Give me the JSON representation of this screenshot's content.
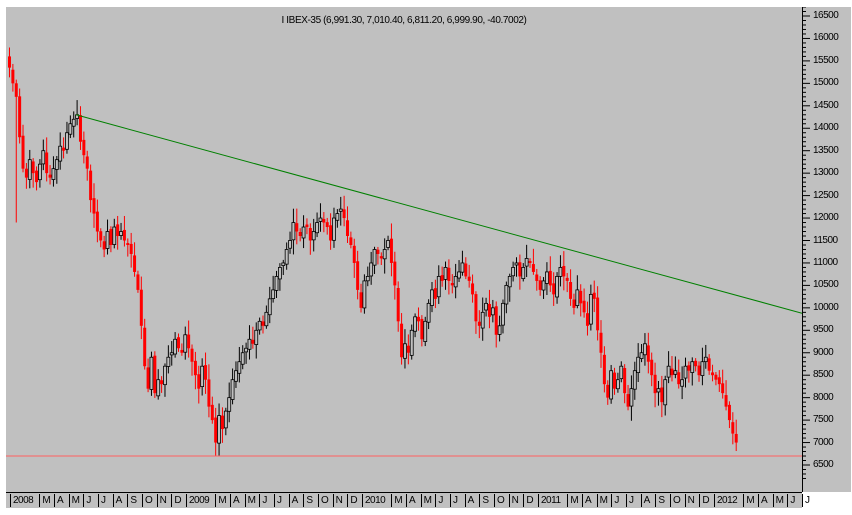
{
  "title": "I IBEX-35 (6,991.30, 7,010.40, 6,811.20, 6,999.90, -40.7002)",
  "colors": {
    "background": "#c0c0c0",
    "up_candle": "#000000",
    "down_candle": "#ff0000",
    "trendline": "#008000",
    "support_line": "#ff6060"
  },
  "y_axis": {
    "labels": [
      "16500",
      "16000",
      "15500",
      "15000",
      "14500",
      "14000",
      "13500",
      "13000",
      "12500",
      "12000",
      "11500",
      "11000",
      "10500",
      "10000",
      "9500",
      "9000",
      "8500",
      "8000",
      "7500",
      "7000",
      "6500"
    ]
  },
  "x_axis": {
    "labels": [
      "2008",
      "M",
      "A",
      "M",
      "J",
      "J",
      "A",
      "S",
      "O",
      "N",
      "D",
      "2009",
      "M",
      "A",
      "M",
      "J",
      "J",
      "A",
      "S",
      "O",
      "N",
      "D",
      "2010",
      "M",
      "A",
      "M",
      "J",
      "J",
      "A",
      "S",
      "O",
      "N",
      "D",
      "2011",
      "M",
      "A",
      "M",
      "J",
      "J",
      "A",
      "S",
      "O",
      "N",
      "D",
      "2012",
      "M",
      "A",
      "M",
      "J",
      "J"
    ]
  },
  "chart_data": {
    "type": "candlestick",
    "title": "IBEX-35 (6,991.30, 7,010.40, 6,811.20, 6,999.90, -40.7002)",
    "last_bar": {
      "open": 6991.3,
      "high": 7010.4,
      "low": 6811.2,
      "close": 6999.9,
      "change": -40.7002
    },
    "xlabel": "",
    "ylabel": "",
    "ylim": [
      6200,
      16700
    ],
    "y_ticks": [
      6500,
      7000,
      7500,
      8000,
      8500,
      9000,
      9500,
      10000,
      10500,
      11000,
      11500,
      12000,
      12500,
      13000,
      13500,
      14000,
      14500,
      15000,
      15500,
      16000,
      16500
    ],
    "x_ticks": [
      "2008",
      "M",
      "A",
      "M",
      "J",
      "J",
      "A",
      "S",
      "O",
      "N",
      "D",
      "2009",
      "M",
      "A",
      "M",
      "J",
      "J",
      "A",
      "S",
      "O",
      "N",
      "D",
      "2010",
      "M",
      "A",
      "M",
      "J",
      "J",
      "A",
      "S",
      "O",
      "N",
      "D",
      "2011",
      "M",
      "A",
      "M",
      "J",
      "J",
      "A",
      "S",
      "O",
      "N",
      "D",
      "2012",
      "M",
      "A",
      "M",
      "J",
      "J"
    ],
    "period": "weekly",
    "x_range": [
      "2008-01",
      "2012-04"
    ],
    "annotations": [
      {
        "type": "trendline",
        "color": "green",
        "from": {
          "date": "2008-05",
          "price": 14300
        },
        "to": {
          "date": "2012-06",
          "price": 9900
        },
        "touches": [
          "2009-12 ~12250",
          "2011-02 ~11200",
          "2011-04 ~11000"
        ]
      },
      {
        "type": "horizontal_line",
        "color": "red",
        "price": 6700,
        "note": "support at Mar 2009 low"
      }
    ],
    "key_points": [
      {
        "date": "2008-01",
        "price": 15400,
        "label": "start"
      },
      {
        "date": "2008-01",
        "price": 11900,
        "label": "Jan 2008 spike low"
      },
      {
        "date": "2008-05",
        "price": 14300,
        "label": "May 2008 high"
      },
      {
        "date": "2008-10",
        "price": 7800,
        "label": "Oct 2008 low"
      },
      {
        "date": "2009-03",
        "price": 6700,
        "label": "Mar 2009 low"
      },
      {
        "date": "2009-12",
        "price": 12250,
        "label": "Dec 2009 high"
      },
      {
        "date": "2010-02",
        "price": 10000,
        "label": "Feb 2010 low"
      },
      {
        "date": "2010-04",
        "price": 11600,
        "label": "Apr 2010 high"
      },
      {
        "date": "2010-05",
        "price": 8600,
        "label": "May 2010 low"
      },
      {
        "date": "2010-10",
        "price": 11000,
        "label": "Oct 2010 high"
      },
      {
        "date": "2010-11",
        "price": 9300,
        "label": "Nov 2010 low"
      },
      {
        "date": "2011-02",
        "price": 11200,
        "label": "Feb 2011 high"
      },
      {
        "date": "2011-08",
        "price": 7600,
        "label": "Aug 2011 low"
      },
      {
        "date": "2011-10",
        "price": 9300,
        "label": "Oct 2011 high"
      },
      {
        "date": "2012-02",
        "price": 8950,
        "label": "Feb 2012 high"
      },
      {
        "date": "2012-04",
        "price": 6812,
        "label": "Apr 2012 low"
      }
    ],
    "closes": [
      15350,
      15000,
      14700,
      13800,
      13100,
      12900,
      13300,
      13000,
      12800,
      13200,
      13500,
      13000,
      12900,
      13100,
      13300,
      13600,
      13500,
      13900,
      14100,
      14200,
      14300,
      13700,
      13400,
      13100,
      12400,
      12100,
      11700,
      11500,
      11300,
      11700,
      11400,
      11800,
      11600,
      11700,
      11500,
      11400,
      11200,
      10800,
      10400,
      9600,
      8700,
      8200,
      8900,
      8100,
      8400,
      8300,
      8700,
      8900,
      9000,
      9300,
      9100,
      9000,
      9400,
      9100,
      8800,
      8500,
      8200,
      8700,
      8400,
      7800,
      7500,
      7000,
      7600,
      7300,
      7700,
      8000,
      8400,
      8600,
      8800,
      9000,
      9100,
      9300,
      9200,
      9500,
      9700,
      9600,
      9900,
      10200,
      10400,
      10700,
      10900,
      11000,
      11300,
      11500,
      11900,
      11700,
      11600,
      11800,
      11800,
      11500,
      11700,
      11900,
      12000,
      11900,
      11800,
      11500,
      12000,
      12100,
      12200,
      12000,
      11600,
      11400,
      11000,
      10400,
      10000,
      10600,
      10700,
      11000,
      11300,
      11200,
      11100,
      11300,
      11500,
      11000,
      10500,
      9700,
      8900,
      9200,
      9000,
      9500,
      9800,
      9700,
      9300,
      9700,
      10100,
      10400,
      10200,
      10700,
      10600,
      10900,
      10600,
      10500,
      10700,
      10800,
      11000,
      10700,
      10600,
      10300,
      9700,
      9600,
      9900,
      10100,
      9800,
      10000,
      9400,
      9600,
      10100,
      10500,
      10700,
      10900,
      11000,
      10700,
      10900,
      11100,
      11000,
      10800,
      10600,
      10400,
      10600,
      10800,
      10500,
      10300,
      10700,
      10900,
      10700,
      10600,
      10200,
      10000,
      10400,
      10100,
      9900,
      9600,
      10300,
      10200,
      9500,
      9000,
      8300,
      8000,
      8600,
      8200,
      8400,
      8700,
      8100,
      7800,
      8200,
      8600,
      8900,
      9000,
      9200,
      8800,
      8500,
      8100,
      8200,
      7900,
      8400,
      8700,
      8500,
      8600,
      8300,
      8400,
      8700,
      8600,
      8800,
      8700,
      8500,
      8800,
      8900,
      8600,
      8500,
      8400,
      8300,
      8100,
      7800,
      7500,
      7200,
      6999.9
    ]
  }
}
